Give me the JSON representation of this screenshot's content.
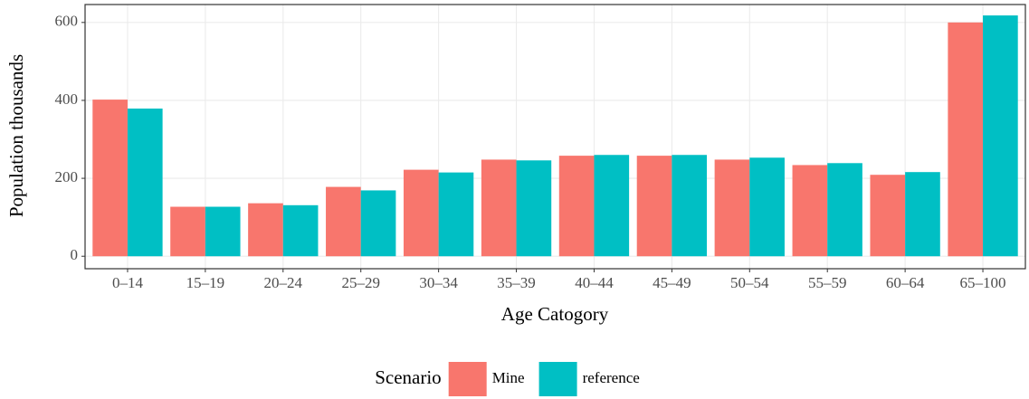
{
  "chart_data": {
    "type": "bar",
    "x_label": "Age Catogory",
    "y_label": "Population thousands",
    "legend_title": "Scenario",
    "legend_position": "bottom",
    "grid": true,
    "categories": [
      "0–14",
      "15–19",
      "20–24",
      "25–29",
      "30–34",
      "35–39",
      "40–44",
      "45–49",
      "50–54",
      "55–59",
      "60–64",
      "65–100"
    ],
    "series": [
      {
        "name": "Mine",
        "color": "#F8766D",
        "values": [
          402,
          127,
          136,
          178,
          222,
          248,
          258,
          258,
          248,
          234,
          209,
          600
        ]
      },
      {
        "name": "reference",
        "color": "#00BFC4",
        "values": [
          379,
          127,
          131,
          169,
          215,
          246,
          260,
          260,
          253,
          239,
          216,
          618
        ]
      }
    ],
    "ylim": [
      -32,
      646
    ],
    "yticks": [
      0,
      200,
      400,
      600
    ]
  }
}
